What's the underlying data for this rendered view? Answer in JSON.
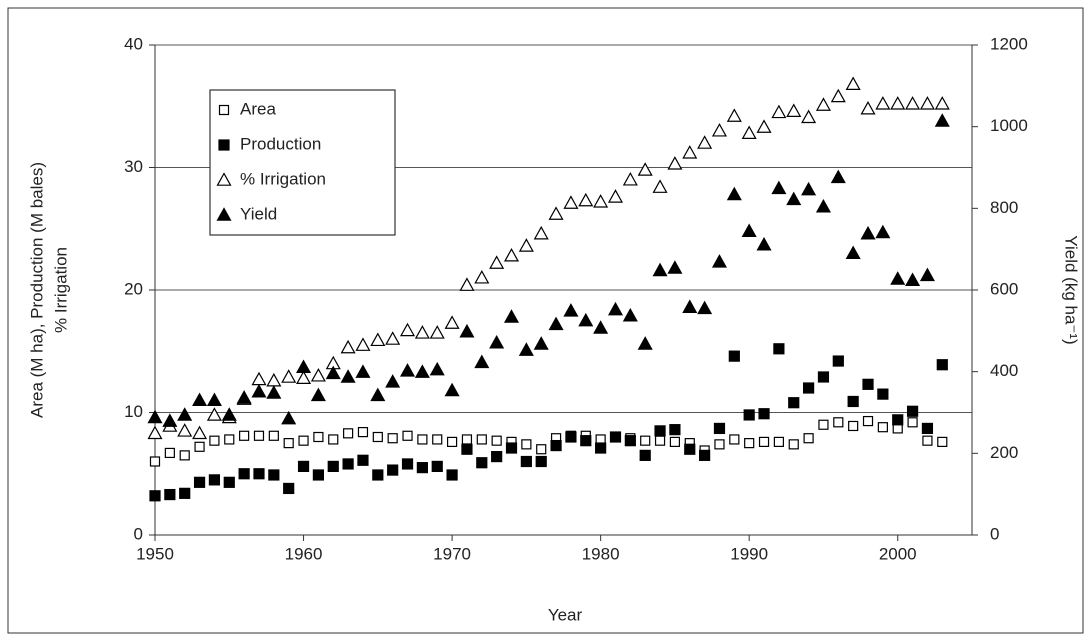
{
  "chart_data": {
    "type": "scatter",
    "xlabel": "Year",
    "ylabel": [
      "Area (M ha), Production (M bales)",
      "% Irrigation"
    ],
    "y2label": "Yield (kg ha⁻¹)",
    "x": [
      1950,
      1951,
      1952,
      1953,
      1954,
      1955,
      1956,
      1957,
      1958,
      1959,
      1960,
      1961,
      1962,
      1963,
      1964,
      1965,
      1966,
      1967,
      1968,
      1969,
      1970,
      1971,
      1972,
      1973,
      1974,
      1975,
      1976,
      1977,
      1978,
      1979,
      1980,
      1981,
      1982,
      1983,
      1984,
      1985,
      1986,
      1987,
      1988,
      1989,
      1990,
      1991,
      1992,
      1993,
      1994,
      1995,
      1996,
      1997,
      1998,
      1999,
      2000,
      2001,
      2002,
      2003
    ],
    "xlim": [
      1950,
      2005
    ],
    "xticks": [
      1950,
      1960,
      1970,
      1980,
      1990,
      2000
    ],
    "ylim": [
      0,
      40
    ],
    "yticks": [
      0,
      10,
      20,
      30,
      40
    ],
    "y2lim": [
      0,
      1200
    ],
    "y2ticks": [
      0,
      200,
      400,
      600,
      800,
      1000,
      1200
    ],
    "grid": true,
    "legend": "upper left",
    "series": [
      {
        "name": "Area",
        "color": "#000000",
        "marker": "square-open",
        "values": [
          6.0,
          6.7,
          6.5,
          7.2,
          7.7,
          7.8,
          8.1,
          8.1,
          8.1,
          7.5,
          7.7,
          8.0,
          7.8,
          8.3,
          8.4,
          8.0,
          7.9,
          8.1,
          7.8,
          7.8,
          7.6,
          7.8,
          7.8,
          7.7,
          7.6,
          7.4,
          7.0,
          7.9,
          8.1,
          8.1,
          7.8,
          8.0,
          7.9,
          7.7,
          7.7,
          7.6,
          7.5,
          6.9,
          7.4,
          7.8,
          7.5,
          7.6,
          7.6,
          7.4,
          7.9,
          9.0,
          9.2,
          8.9,
          9.3,
          8.8,
          8.7,
          9.2,
          7.7,
          7.6
        ]
      },
      {
        "name": "Production",
        "color": "#000000",
        "marker": "square",
        "values": [
          3.2,
          3.3,
          3.4,
          4.3,
          4.5,
          4.3,
          5.0,
          5.0,
          4.9,
          3.8,
          5.6,
          4.9,
          5.6,
          5.8,
          6.1,
          4.9,
          5.3,
          5.8,
          5.5,
          5.6,
          4.9,
          7.0,
          5.9,
          6.4,
          7.1,
          6.0,
          6.0,
          7.3,
          8.0,
          7.7,
          7.1,
          8.0,
          7.7,
          6.5,
          8.5,
          8.6,
          7.0,
          6.5,
          8.7,
          14.6,
          9.8,
          9.9,
          15.2,
          10.8,
          12.0,
          12.9,
          14.2,
          10.9,
          12.3,
          11.5,
          9.4,
          10.1,
          8.7,
          13.9
        ]
      },
      {
        "name": "% Irrigation",
        "color": "#000000",
        "marker": "triangle-open",
        "values": [
          8.3,
          8.9,
          8.5,
          8.3,
          9.8,
          9.6,
          11.1,
          12.7,
          12.6,
          12.9,
          12.8,
          13.0,
          14.0,
          15.3,
          15.5,
          15.9,
          16.0,
          16.7,
          16.5,
          16.5,
          17.3,
          20.4,
          21.0,
          22.2,
          22.8,
          23.6,
          24.6,
          26.2,
          27.1,
          27.3,
          27.2,
          27.6,
          29.0,
          29.8,
          28.4,
          30.3,
          31.2,
          32.0,
          33.0,
          34.2,
          32.8,
          33.3,
          34.5,
          34.6,
          34.1,
          35.1,
          35.8,
          36.8,
          34.8,
          35.2,
          35.2,
          35.2,
          35.2,
          35.2
        ]
      },
      {
        "name": "Yield",
        "color": "#000000",
        "marker": "triangle",
        "axis": "y2",
        "values": [
          288,
          279,
          294,
          330,
          330,
          294,
          336,
          351,
          348,
          285,
          411,
          342,
          396,
          387,
          399,
          342,
          375,
          402,
          399,
          405,
          354,
          498,
          423,
          471,
          534,
          453,
          468,
          516,
          549,
          525,
          507,
          552,
          537,
          468,
          648,
          654,
          558,
          555,
          669,
          834,
          744,
          711,
          849,
          822,
          846,
          804,
          876,
          690,
          738,
          741,
          627,
          624,
          636,
          1014
        ]
      }
    ]
  }
}
